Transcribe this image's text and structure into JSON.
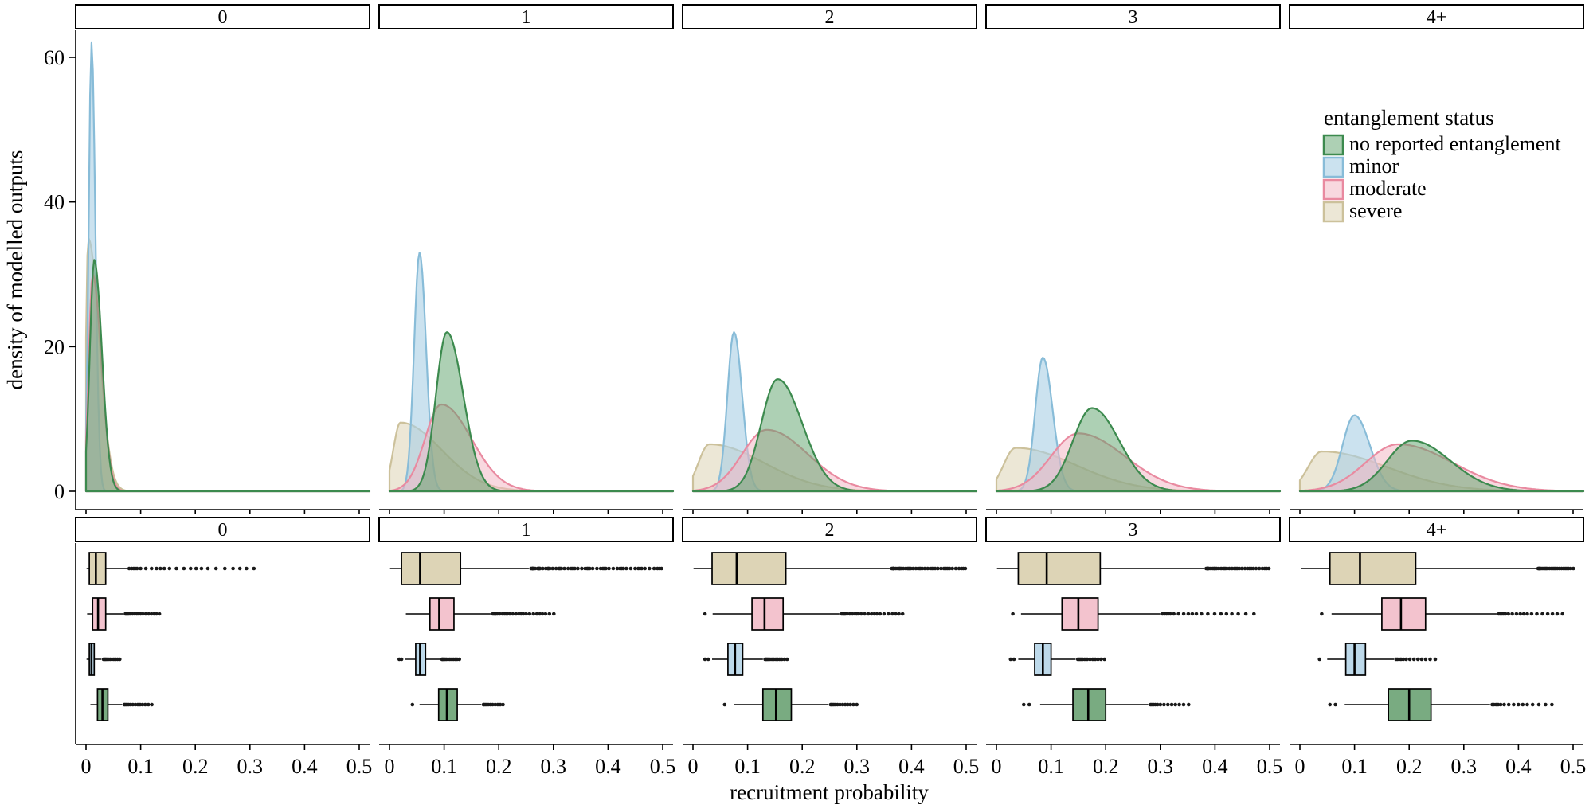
{
  "figure": {
    "background": "#ffffff"
  },
  "chart_data": {
    "type": "density+boxplot",
    "facet_variable_values": [
      "0",
      "1",
      "2",
      "3",
      "4+"
    ],
    "x_axis": {
      "label": "recruitment probability",
      "ticks": [
        "0",
        "0.1",
        "0.2",
        "0.3",
        "0.4",
        "0.5"
      ],
      "tick_values": [
        0,
        0.1,
        0.2,
        0.3,
        0.4,
        0.5
      ],
      "range": [
        0,
        0.5
      ]
    },
    "density_y_axis": {
      "label": "density of modelled outputs",
      "ticks": [
        "0",
        "20",
        "40",
        "60"
      ],
      "tick_values": [
        0,
        20,
        40,
        60
      ],
      "range": [
        0,
        64
      ]
    },
    "legend": {
      "title": "entanglement status",
      "entries": [
        {
          "label": "no reported entanglement",
          "key": "none"
        },
        {
          "label": "minor",
          "key": "minor"
        },
        {
          "label": "moderate",
          "key": "moderate"
        },
        {
          "label": "severe",
          "key": "severe"
        }
      ]
    },
    "series_styles": {
      "none": {
        "stroke": "#3c8a4e",
        "fill": "#5ba169",
        "fill_opacity": 0.5,
        "box_fill": "#79ab81"
      },
      "minor": {
        "stroke": "#88bcd8",
        "fill": "#a9cfe5",
        "fill_opacity": 0.6,
        "box_fill": "#bdd9ea"
      },
      "moderate": {
        "stroke": "#e98aa0",
        "fill": "#f3b8c5",
        "fill_opacity": 0.55,
        "box_fill": "#f3c3ce"
      },
      "severe": {
        "stroke": "#ccc19b",
        "fill": "#ddd3b4",
        "fill_opacity": 0.55,
        "box_fill": "#ddd4b6"
      }
    },
    "density_draw_order": [
      "severe",
      "minor",
      "moderate",
      "none"
    ],
    "densities": [
      {
        "severe": {
          "peak_x": 0.004,
          "peak_y": 35.0,
          "sd_left": 0.004,
          "sd_right": 0.02
        },
        "minor": {
          "peak_x": 0.01,
          "peak_y": 62.0,
          "sd_left": 0.005,
          "sd_right": 0.007
        },
        "moderate": {
          "peak_x": 0.012,
          "peak_y": 30.0,
          "sd_left": 0.007,
          "sd_right": 0.016
        },
        "none": {
          "peak_x": 0.015,
          "peak_y": 32.0,
          "sd_left": 0.008,
          "sd_right": 0.014
        }
      },
      {
        "severe": {
          "peak_x": 0.02,
          "peak_y": 9.5,
          "sd_left": 0.013,
          "sd_right": 0.075
        },
        "minor": {
          "peak_x": 0.055,
          "peak_y": 33.0,
          "sd_left": 0.01,
          "sd_right": 0.012
        },
        "moderate": {
          "peak_x": 0.095,
          "peak_y": 12.0,
          "sd_left": 0.03,
          "sd_right": 0.055
        },
        "none": {
          "peak_x": 0.105,
          "peak_y": 22.0,
          "sd_left": 0.02,
          "sd_right": 0.03
        }
      },
      {
        "severe": {
          "peak_x": 0.03,
          "peak_y": 6.5,
          "sd_left": 0.02,
          "sd_right": 0.1
        },
        "minor": {
          "peak_x": 0.075,
          "peak_y": 22.0,
          "sd_left": 0.012,
          "sd_right": 0.015
        },
        "moderate": {
          "peak_x": 0.135,
          "peak_y": 8.5,
          "sd_left": 0.045,
          "sd_right": 0.075
        },
        "none": {
          "peak_x": 0.155,
          "peak_y": 15.5,
          "sd_left": 0.03,
          "sd_right": 0.045
        }
      },
      {
        "severe": {
          "peak_x": 0.035,
          "peak_y": 6.0,
          "sd_left": 0.022,
          "sd_right": 0.11
        },
        "minor": {
          "peak_x": 0.085,
          "peak_y": 18.5,
          "sd_left": 0.014,
          "sd_right": 0.018
        },
        "moderate": {
          "peak_x": 0.15,
          "peak_y": 8.0,
          "sd_left": 0.05,
          "sd_right": 0.085
        },
        "none": {
          "peak_x": 0.175,
          "peak_y": 11.5,
          "sd_left": 0.035,
          "sd_right": 0.05
        }
      },
      {
        "severe": {
          "peak_x": 0.04,
          "peak_y": 5.5,
          "sd_left": 0.025,
          "sd_right": 0.12
        },
        "minor": {
          "peak_x": 0.1,
          "peak_y": 10.5,
          "sd_left": 0.022,
          "sd_right": 0.028
        },
        "moderate": {
          "peak_x": 0.18,
          "peak_y": 6.5,
          "sd_left": 0.06,
          "sd_right": 0.1
        },
        "none": {
          "peak_x": 0.205,
          "peak_y": 7.0,
          "sd_left": 0.045,
          "sd_right": 0.07
        }
      }
    ],
    "boxplot_row_order": [
      "severe",
      "moderate",
      "minor",
      "none"
    ],
    "boxplots": [
      [
        {
          "whisker_low": 0.001,
          "q1": 0.006,
          "median": 0.018,
          "q3": 0.036,
          "whisker_high": 0.075,
          "outliers_to": 0.31,
          "outlier_count": 24,
          "low_outliers": []
        },
        {
          "whisker_low": 0.002,
          "q1": 0.012,
          "median": 0.022,
          "q3": 0.036,
          "whisker_high": 0.068,
          "outliers_to": 0.135,
          "outlier_count": 18,
          "low_outliers": []
        },
        {
          "whisker_low": 0.001,
          "q1": 0.006,
          "median": 0.01,
          "q3": 0.015,
          "whisker_high": 0.028,
          "outliers_to": 0.062,
          "outlier_count": 12,
          "low_outliers": []
        },
        {
          "whisker_low": 0.008,
          "q1": 0.021,
          "median": 0.03,
          "q3": 0.04,
          "whisker_high": 0.066,
          "outliers_to": 0.12,
          "outlier_count": 14,
          "low_outliers": []
        }
      ],
      [
        {
          "whisker_low": 0.001,
          "q1": 0.022,
          "median": 0.056,
          "q3": 0.13,
          "whisker_high": 0.255,
          "outliers_to": 0.5,
          "outlier_count": 60,
          "low_outliers": []
        },
        {
          "whisker_low": 0.03,
          "q1": 0.074,
          "median": 0.091,
          "q3": 0.118,
          "whisker_high": 0.185,
          "outliers_to": 0.3,
          "outlier_count": 26,
          "low_outliers": []
        },
        {
          "whisker_low": 0.028,
          "q1": 0.048,
          "median": 0.056,
          "q3": 0.066,
          "whisker_high": 0.092,
          "outliers_to": 0.128,
          "outlier_count": 13,
          "low_outliers": [
            0.018,
            0.022
          ]
        },
        {
          "whisker_low": 0.055,
          "q1": 0.09,
          "median": 0.105,
          "q3": 0.124,
          "whisker_high": 0.168,
          "outliers_to": 0.208,
          "outlier_count": 11,
          "low_outliers": [
            0.042
          ]
        }
      ],
      [
        {
          "whisker_low": 0.001,
          "q1": 0.035,
          "median": 0.08,
          "q3": 0.17,
          "whisker_high": 0.36,
          "outliers_to": 0.5,
          "outlier_count": 42,
          "low_outliers": []
        },
        {
          "whisker_low": 0.036,
          "q1": 0.108,
          "median": 0.131,
          "q3": 0.165,
          "whisker_high": 0.268,
          "outliers_to": 0.385,
          "outlier_count": 24,
          "low_outliers": [
            0.022
          ]
        },
        {
          "whisker_low": 0.035,
          "q1": 0.064,
          "median": 0.077,
          "q3": 0.091,
          "whisker_high": 0.128,
          "outliers_to": 0.172,
          "outlier_count": 14,
          "low_outliers": [
            0.022,
            0.028
          ]
        },
        {
          "whisker_low": 0.075,
          "q1": 0.128,
          "median": 0.152,
          "q3": 0.18,
          "whisker_high": 0.248,
          "outliers_to": 0.3,
          "outlier_count": 13,
          "low_outliers": [
            0.058
          ]
        }
      ],
      [
        {
          "whisker_low": 0.001,
          "q1": 0.04,
          "median": 0.092,
          "q3": 0.19,
          "whisker_high": 0.38,
          "outliers_to": 0.5,
          "outlier_count": 36,
          "low_outliers": []
        },
        {
          "whisker_low": 0.045,
          "q1": 0.12,
          "median": 0.15,
          "q3": 0.186,
          "whisker_high": 0.3,
          "outliers_to": 0.47,
          "outlier_count": 20,
          "low_outliers": [
            0.03
          ]
        },
        {
          "whisker_low": 0.04,
          "q1": 0.07,
          "median": 0.085,
          "q3": 0.1,
          "whisker_high": 0.145,
          "outliers_to": 0.198,
          "outlier_count": 13,
          "low_outliers": [
            0.026,
            0.032
          ]
        },
        {
          "whisker_low": 0.08,
          "q1": 0.14,
          "median": 0.168,
          "q3": 0.2,
          "whisker_high": 0.278,
          "outliers_to": 0.352,
          "outlier_count": 13,
          "low_outliers": [
            0.05,
            0.06
          ]
        }
      ],
      [
        {
          "whisker_low": 0.002,
          "q1": 0.055,
          "median": 0.11,
          "q3": 0.212,
          "whisker_high": 0.432,
          "outliers_to": 0.5,
          "outlier_count": 26,
          "low_outliers": []
        },
        {
          "whisker_low": 0.058,
          "q1": 0.15,
          "median": 0.185,
          "q3": 0.23,
          "whisker_high": 0.36,
          "outliers_to": 0.482,
          "outlier_count": 18,
          "low_outliers": [
            0.04
          ]
        },
        {
          "whisker_low": 0.05,
          "q1": 0.084,
          "median": 0.1,
          "q3": 0.12,
          "whisker_high": 0.172,
          "outliers_to": 0.248,
          "outlier_count": 13,
          "low_outliers": [
            0.036
          ]
        },
        {
          "whisker_low": 0.082,
          "q1": 0.162,
          "median": 0.2,
          "q3": 0.24,
          "whisker_high": 0.348,
          "outliers_to": 0.46,
          "outlier_count": 15,
          "low_outliers": [
            0.055,
            0.065
          ]
        }
      ]
    ]
  }
}
